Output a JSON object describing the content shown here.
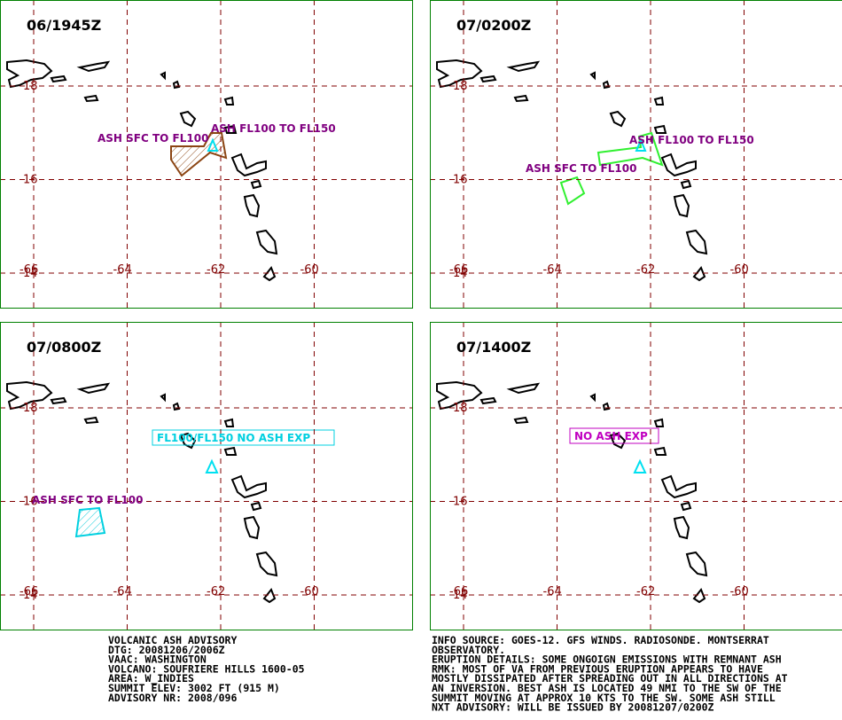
{
  "panels": [
    {
      "time": "06/1945Z",
      "annotations": [
        "ASH SFC TO FL100",
        "ASH FL100 TO FL150"
      ]
    },
    {
      "time": "07/0200Z",
      "annotations": [
        "ASH FL100 TO FL150",
        "ASH SFC TO FL100"
      ]
    },
    {
      "time": "07/0800Z",
      "annotations": [
        "FL100/FL150 NO ASH EXP",
        "ASH SFC TO FL100"
      ]
    },
    {
      "time": "07/1400Z",
      "annotations": [
        "NO ASH EXP"
      ]
    }
  ],
  "lat_labels": [
    18,
    16,
    14
  ],
  "lon_labels": [
    -66,
    -64,
    -62,
    -60
  ],
  "advisory_left": [
    "VOLCANIC ASH ADVISORY",
    "DTG: 20081206/2006Z",
    "VAAC: WASHINGTON",
    "VOLCANO: SOUFRIERE HILLS 1600-05",
    "AREA: W_INDIES",
    "SUMMIT ELEV: 3002 FT (915 M)",
    "ADVISORY NR: 2008/096"
  ],
  "advisory_right": [
    "INFO SOURCE: GOES-12. GFS WINDS. RADIOSONDE. MONTSERRAT",
    "OBSERVATORY.",
    "ERUPTION DETAILS: SOME ONGOIGN EMISSIONS WITH REMNANT ASH",
    "RMK: MOST OF VA FROM PREVIOUS ERUPTION APPEARS TO HAVE",
    "MOSTLY DISSIPATED AFTER SPREADING OUT IN ALL DIRECTIONS AT",
    "AN INVERSION. BEST ASH IS LOCATED 49 NMI TO THE SW OF THE",
    "SUMMIT MOVING AT APPROX 10 KTS TO THE SW. SOME ASH STILL",
    "NXT ADVISORY: WILL BE ISSUED BY 20081207/0200Z"
  ]
}
